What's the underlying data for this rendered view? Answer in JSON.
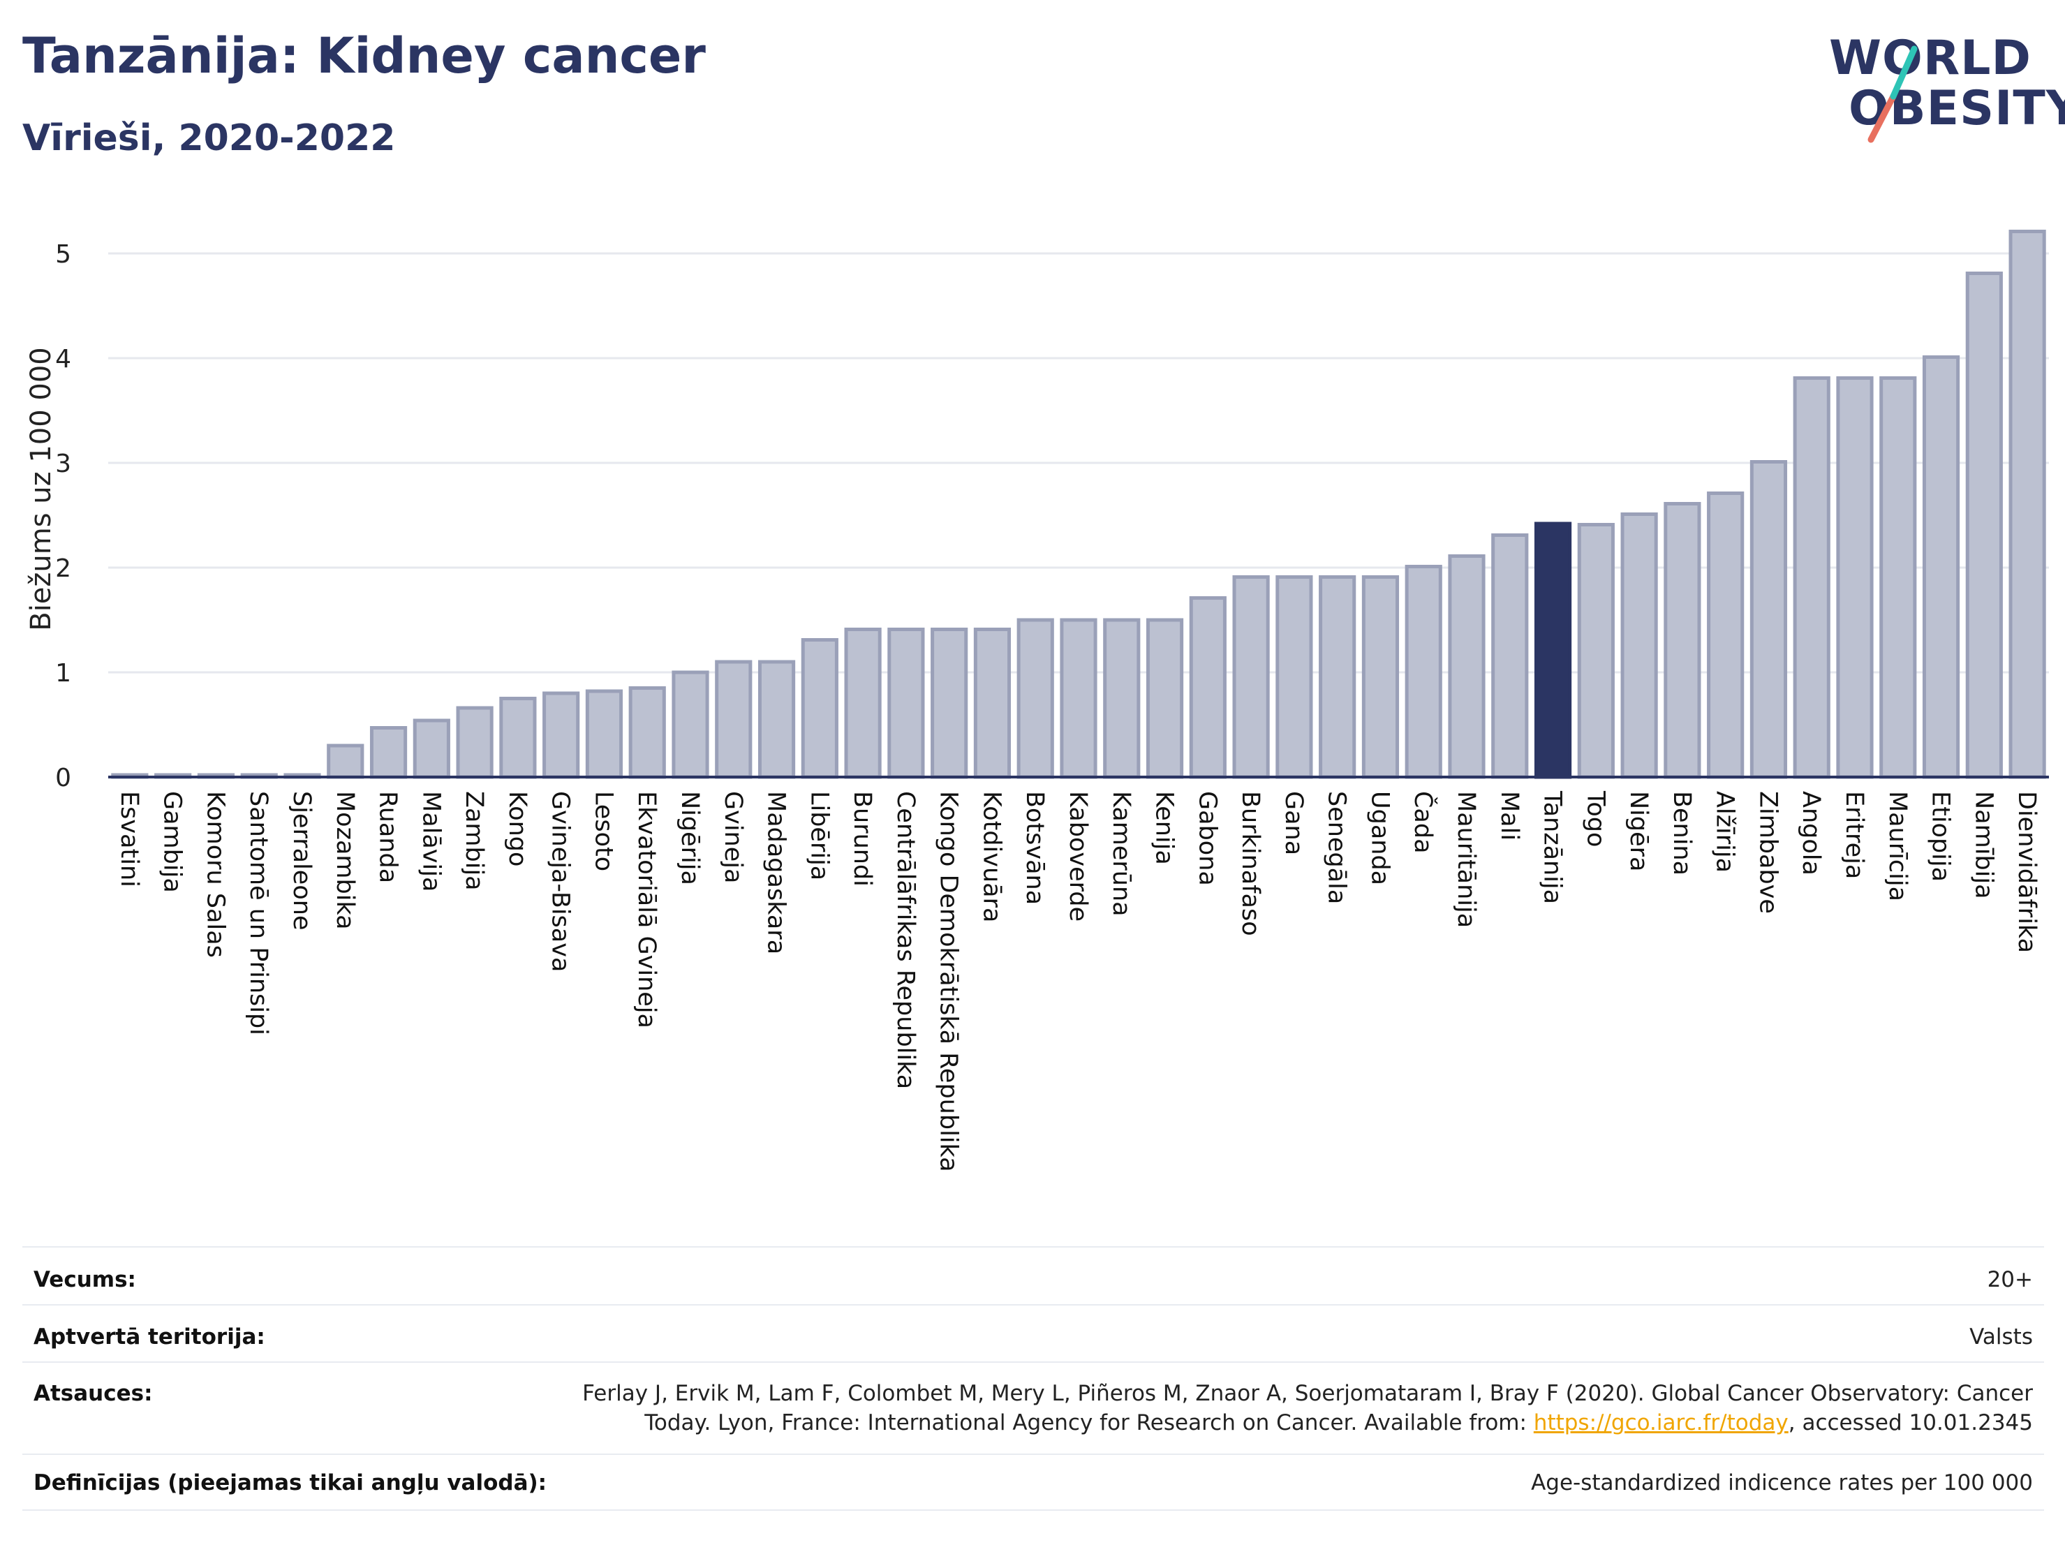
{
  "header": {
    "title": "Tanzānija: Kidney cancer",
    "subtitle": "Vīrieši, 2020-2022"
  },
  "logo": {
    "line1": "WORLD",
    "line2": "OBESITY",
    "colors": {
      "text": "#2b3563",
      "slash_top": "#2ec4b6",
      "slash_bottom": "#e8705f"
    }
  },
  "colors": {
    "bar": "#bcc1d1",
    "bar_border": "#9aa0b8",
    "highlight": "#2b3563",
    "grid": "#e6e8ee",
    "axis": "#2b3563"
  },
  "chart_data": {
    "type": "bar",
    "ylabel": "Biežums uz 100 000",
    "ylim": [
      0,
      5.5
    ],
    "yticks": [
      "0",
      "1",
      "2",
      "3",
      "4",
      "5"
    ],
    "grid": true,
    "highlight": "Tanzānija",
    "categories": [
      "Esvatini",
      "Gambija",
      "Komoru Salas",
      "Santomē un Prinsipi",
      "Sjerraleone",
      "Mozambika",
      "Ruanda",
      "Malāvija",
      "Zambija",
      "Kongo",
      "Gvineja-Bisava",
      "Lesoto",
      "Ekvatoriālā Gvineja",
      "Nigērija",
      "Gvineja",
      "Madagaskara",
      "Libērija",
      "Burundi",
      "Centrālāfrikas Republika",
      "Kongo Demokrātiskā Republika",
      "Kotdivuāra",
      "Botsvāna",
      "Kaboverde",
      "Kamerūna",
      "Kenija",
      "Gabona",
      "Burkinafaso",
      "Gana",
      "Senegāla",
      "Uganda",
      "Čada",
      "Mauritānija",
      "Mali",
      "Tanzānija",
      "Togo",
      "Nigēra",
      "Benina",
      "Alžīrija",
      "Zimbabve",
      "Angola",
      "Eritreja",
      "Maurīcija",
      "Etiopija",
      "Namībija",
      "Dienvidāfrika"
    ],
    "values": [
      0.0,
      0.0,
      0.0,
      0.0,
      0.0,
      0.3,
      0.47,
      0.54,
      0.66,
      0.75,
      0.8,
      0.82,
      0.85,
      1.0,
      1.1,
      1.1,
      1.31,
      1.41,
      1.41,
      1.41,
      1.41,
      1.5,
      1.5,
      1.5,
      1.5,
      1.71,
      1.91,
      1.91,
      1.91,
      1.91,
      2.01,
      2.11,
      2.31,
      2.42,
      2.41,
      2.51,
      2.61,
      2.71,
      3.01,
      3.81,
      3.81,
      3.81,
      4.01,
      4.81,
      5.21
    ]
  },
  "meta": [
    {
      "key": "Vecums:",
      "value": "20+"
    },
    {
      "key": "Aptvertā teritorija:",
      "value": "Valsts"
    },
    {
      "key": "Atsauces:",
      "value_line1": "Ferlay J, Ervik M, Lam F, Colombet M, Mery L, Piñeros M, Znaor A, Soerjomataram I, Bray F (2020). Global Cancer Observatory: Cancer",
      "value_line2_pre": "Today. Lyon, France: International Agency for Research on Cancer. Available from: ",
      "link": "https://gco.iarc.fr/today",
      "value_line2_post": ", accessed 10.01.2345"
    },
    {
      "key": "Definīcijas (pieejamas tikai angļu valodā):",
      "value": "Age-standardized indicence rates per 100 000"
    }
  ]
}
